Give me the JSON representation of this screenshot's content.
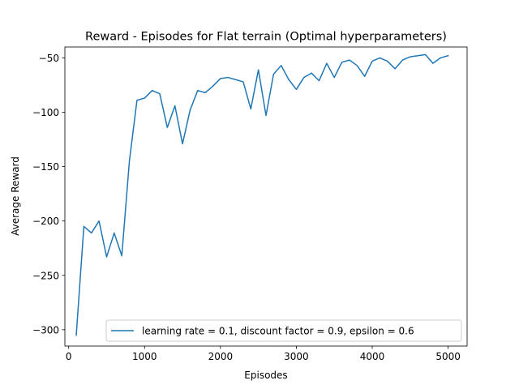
{
  "chart_data": {
    "type": "line",
    "title": "Reward - Episodes for Flat terrain (Optimal hyperparameters)",
    "xlabel": "Episodes",
    "ylabel": "Average Reward",
    "xlim": [
      -50,
      5250
    ],
    "ylim": [
      -315,
      -40
    ],
    "xticks": [
      0,
      1000,
      2000,
      3000,
      4000,
      5000
    ],
    "xtick_labels": [
      "0",
      "1000",
      "2000",
      "3000",
      "4000",
      "5000"
    ],
    "yticks": [
      -300,
      -250,
      -200,
      -150,
      -100,
      -50
    ],
    "ytick_labels": [
      "−300",
      "−250",
      "−200",
      "−150",
      "−100",
      "−50"
    ],
    "grid": false,
    "legend_position": "lower right",
    "series": [
      {
        "name": "learning rate = 0.1, discount factor = 0.9, epsilon = 0.6",
        "color": "#1f77b4",
        "x": [
          100,
          200,
          300,
          400,
          500,
          600,
          700,
          800,
          900,
          1000,
          1100,
          1200,
          1300,
          1400,
          1500,
          1600,
          1700,
          1800,
          1900,
          2000,
          2100,
          2200,
          2300,
          2400,
          2500,
          2600,
          2700,
          2800,
          2900,
          3000,
          3100,
          3200,
          3300,
          3400,
          3500,
          3600,
          3700,
          3800,
          3900,
          4000,
          4100,
          4200,
          4300,
          4400,
          4500,
          4600,
          4700,
          4800,
          4900,
          5000
        ],
        "values": [
          -305,
          -205,
          -211,
          -200,
          -233,
          -211,
          -232,
          -145,
          -89,
          -87,
          -80,
          -83,
          -114,
          -94,
          -129,
          -98,
          -80,
          -82,
          -76,
          -69,
          -68,
          -70,
          -72,
          -97,
          -61,
          -103,
          -65,
          -57,
          -70,
          -79,
          -68,
          -64,
          -71,
          -55,
          -68,
          -54,
          -52,
          -57,
          -67,
          -53,
          -50,
          -53,
          -60,
          -52,
          -49,
          -48,
          -47,
          -55,
          -50,
          -48
        ]
      }
    ]
  }
}
